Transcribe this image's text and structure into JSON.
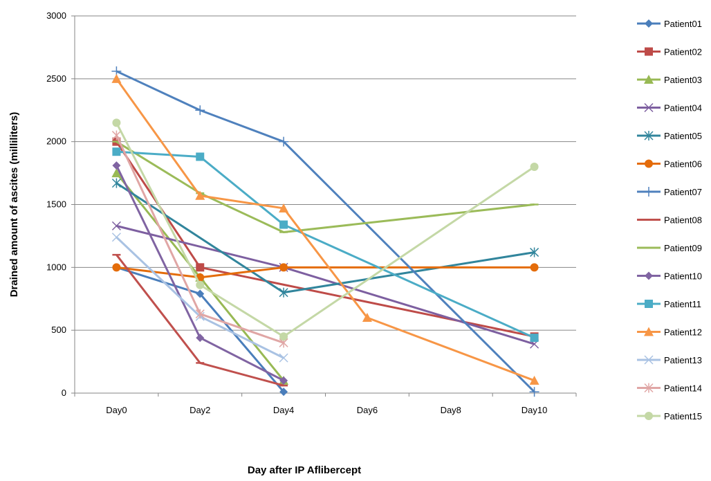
{
  "chart_data": {
    "type": "line",
    "title": "",
    "xlabel": "Day after IP Aflibercept",
    "ylabel": "Drained amount of ascites (milliliters)",
    "categories": [
      "Day0",
      "Day2",
      "Day4",
      "Day6",
      "Day8",
      "Day10"
    ],
    "ylim": [
      0,
      3000
    ],
    "yticks": [
      0,
      500,
      1000,
      1500,
      2000,
      2500,
      3000
    ],
    "grid": "horizontal",
    "legend_position": "right",
    "series": [
      {
        "name": "Patient01",
        "color": "#4A7EBB",
        "marker": "diamond",
        "values": [
          1000,
          790,
          10,
          null,
          null,
          null
        ]
      },
      {
        "name": "Patient02",
        "color": "#BE4B48",
        "marker": "square",
        "values": [
          2000,
          1000,
          null,
          null,
          null,
          450
        ]
      },
      {
        "name": "Patient03",
        "color": "#98B954",
        "marker": "triangle",
        "values": [
          1750,
          920,
          100,
          null,
          null,
          null
        ]
      },
      {
        "name": "Patient04",
        "color": "#7D5FA0",
        "marker": "x",
        "values": [
          1330,
          null,
          1000,
          null,
          null,
          390
        ]
      },
      {
        "name": "Patient05",
        "color": "#31859C",
        "marker": "star",
        "values": [
          1670,
          null,
          800,
          null,
          null,
          1120
        ]
      },
      {
        "name": "Patient06",
        "color": "#E46C0A",
        "marker": "circle",
        "values": [
          1000,
          920,
          1000,
          null,
          null,
          1000
        ]
      },
      {
        "name": "Patient07",
        "color": "#4F81BD",
        "marker": "plus",
        "values": [
          2560,
          2250,
          2000,
          null,
          null,
          10
        ]
      },
      {
        "name": "Patient08",
        "color": "#C0504D",
        "marker": "dash",
        "values": [
          1100,
          240,
          60,
          null,
          null,
          null
        ]
      },
      {
        "name": "Patient09",
        "color": "#9BBB59",
        "marker": "dash",
        "values": [
          2000,
          1590,
          1280,
          null,
          null,
          1500
        ]
      },
      {
        "name": "Patient10",
        "color": "#8064A2",
        "marker": "diamond",
        "values": [
          1810,
          440,
          100,
          null,
          null,
          null
        ]
      },
      {
        "name": "Patient11",
        "color": "#4BACC6",
        "marker": "square",
        "values": [
          1920,
          1880,
          1340,
          null,
          null,
          440
        ]
      },
      {
        "name": "Patient12",
        "color": "#F79646",
        "marker": "triangle",
        "values": [
          2500,
          1570,
          1470,
          600,
          null,
          100
        ]
      },
      {
        "name": "Patient13",
        "color": "#A9C2E3",
        "marker": "x",
        "values": [
          1240,
          610,
          280,
          null,
          null,
          null
        ]
      },
      {
        "name": "Patient14",
        "color": "#E0A6A5",
        "marker": "star",
        "values": [
          2050,
          630,
          400,
          null,
          null,
          null
        ]
      },
      {
        "name": "Patient15",
        "color": "#C4D8A6",
        "marker": "circle",
        "values": [
          2150,
          860,
          450,
          null,
          null,
          1800
        ]
      }
    ]
  }
}
